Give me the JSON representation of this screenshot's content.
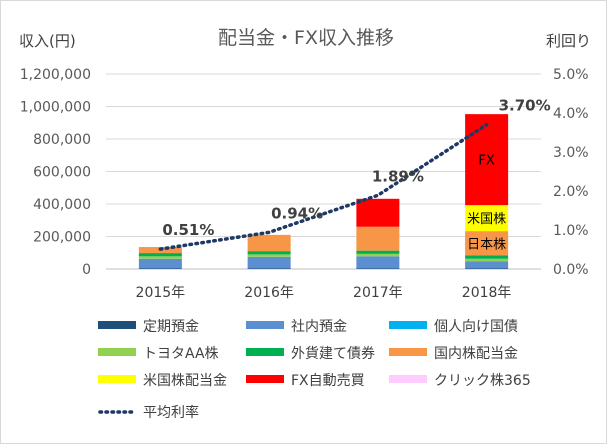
{
  "chart_data": {
    "type": "bar",
    "stacked": true,
    "title": "配当金・FX収入推移",
    "ylabel": "収入(円)",
    "y2label": "利回り",
    "ylim": [
      0,
      1200000
    ],
    "y2lim": [
      0,
      0.05
    ],
    "yticks": [
      "0",
      "200,000",
      "400,000",
      "600,000",
      "800,000",
      "1,000,000",
      "1,200,000"
    ],
    "y2ticks": [
      "0.0%",
      "1.0%",
      "2.0%",
      "3.0%",
      "4.0%",
      "5.0%"
    ],
    "categories": [
      "2015年",
      "2016年",
      "2017年",
      "2018年"
    ],
    "series": [
      {
        "name": "定期預金",
        "color": "#1f4e79",
        "values": [
          3000,
          3000,
          3000,
          3000
        ]
      },
      {
        "name": "社内預金",
        "color": "#5b8fd0",
        "values": [
          60000,
          72000,
          75000,
          45000
        ]
      },
      {
        "name": "個人向け国債",
        "color": "#00b0f0",
        "values": [
          0,
          0,
          0,
          0
        ]
      },
      {
        "name": "トヨタAA株",
        "color": "#92d050",
        "values": [
          15000,
          15000,
          15000,
          15000
        ]
      },
      {
        "name": "外貨建て債券",
        "color": "#00b050",
        "values": [
          20000,
          20000,
          20000,
          20000
        ]
      },
      {
        "name": "国内株配当金",
        "color": "#f79646",
        "values": [
          37000,
          100000,
          147000,
          150000
        ]
      },
      {
        "name": "米国株配当金",
        "color": "#ffff00",
        "values": [
          0,
          0,
          0,
          160000
        ]
      },
      {
        "name": "FX自動売買",
        "color": "#ff0000",
        "values": [
          0,
          0,
          172000,
          560000
        ]
      },
      {
        "name": "クリック株365",
        "color": "#ffccff",
        "values": [
          0,
          0,
          0,
          0
        ]
      }
    ],
    "line": {
      "name": "平均利率",
      "color": "#1f3864",
      "values": [
        0.0051,
        0.0094,
        0.0189,
        0.037
      ],
      "labels": [
        "0.51%",
        "0.94%",
        "1.89%",
        "3.70%"
      ]
    },
    "bar_annotations": [
      {
        "category": "2018年",
        "series": "FX自動売買",
        "text": "FX"
      },
      {
        "category": "2018年",
        "series": "米国株配当金",
        "text": "米国株"
      },
      {
        "category": "2018年",
        "series": "国内株配当金",
        "text": "日本株"
      }
    ],
    "grid": true,
    "legend": "bottom"
  }
}
